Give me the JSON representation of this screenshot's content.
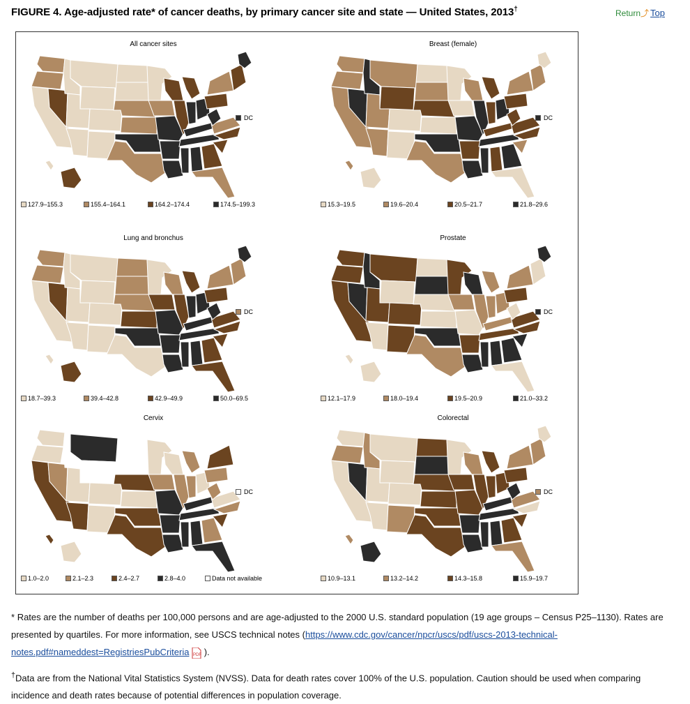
{
  "title": "FIGURE 4. Age-adjusted rate* of cancer deaths, by primary cancer site and state — United States, 2013",
  "title_mark": "†",
  "return_link": {
    "return_label": "Return",
    "top_label": "Top"
  },
  "colors": {
    "q1": "#e6d8c3",
    "q2": "#b08a63",
    "q3": "#6b4420",
    "q4": "#2b2b2b",
    "na": "#ffffff"
  },
  "dc_label": "DC",
  "panels": [
    {
      "title": "All cancer sites",
      "legend": [
        "127.9–155.3",
        "155.4–164.1",
        "164.2–174.4",
        "174.5–199.3"
      ],
      "dc_class": "q4",
      "state_classes": {
        "WA": "q2",
        "OR": "q2",
        "CA": "q1",
        "NV": "q3",
        "ID": "q1",
        "MT": "q1",
        "WY": "q1",
        "UT": "q1",
        "CO": "q1",
        "AZ": "q1",
        "NM": "q1",
        "ND": "q1",
        "SD": "q1",
        "NE": "q2",
        "KS": "q2",
        "OK": "q4",
        "TX": "q2",
        "MN": "q1",
        "IA": "q2",
        "MO": "q4",
        "AR": "q4",
        "LA": "q4",
        "WI": "q3",
        "IL": "q3",
        "MI": "q3",
        "IN": "q4",
        "OH": "q4",
        "KY": "q4",
        "TN": "q4",
        "MS": "q4",
        "AL": "q4",
        "GA": "q3",
        "FL": "q2",
        "SC": "q3",
        "NC": "q3",
        "VA": "q2",
        "WV": "q4",
        "PA": "q3",
        "NY": "q2",
        "NE_states": "q3",
        "ME": "q4",
        "AK": "q3",
        "HI": "q1"
      }
    },
    {
      "title": "Breast (female)",
      "legend": [
        "15.3–19.5",
        "19.6–20.4",
        "20.5–21.7",
        "21.8–29.6"
      ],
      "dc_class": "q4",
      "state_classes": {
        "WA": "q2",
        "OR": "q2",
        "CA": "q2",
        "NV": "q4",
        "ID": "q4",
        "MT": "q2",
        "WY": "q3",
        "UT": "q2",
        "CO": "q1",
        "AZ": "q2",
        "NM": "q1",
        "ND": "q1",
        "SD": "q2",
        "NE": "q3",
        "KS": "q1",
        "OK": "q4",
        "TX": "q2",
        "MN": "q1",
        "IA": "q1",
        "MO": "q4",
        "AR": "q3",
        "LA": "q4",
        "WI": "q2",
        "IL": "q4",
        "MI": "q3",
        "IN": "q3",
        "OH": "q4",
        "KY": "q3",
        "TN": "q4",
        "MS": "q4",
        "AL": "q3",
        "GA": "q4",
        "FL": "q1",
        "SC": "q2",
        "NC": "q3",
        "VA": "q3",
        "WV": "q3",
        "PA": "q3",
        "NY": "q2",
        "NE_states": "q2",
        "ME": "q1",
        "AK": "q1",
        "HI": "q2"
      }
    },
    {
      "title": "Lung and bronchus",
      "legend": [
        "18.7–39.3",
        "39.4–42.8",
        "42.9–49.9",
        "50.0–69.5"
      ],
      "dc_class": "q2",
      "state_classes": {
        "WA": "q2",
        "OR": "q2",
        "CA": "q1",
        "NV": "q3",
        "ID": "q1",
        "MT": "q1",
        "WY": "q1",
        "UT": "q1",
        "CO": "q1",
        "AZ": "q1",
        "NM": "q1",
        "ND": "q2",
        "SD": "q2",
        "NE": "q2",
        "KS": "q3",
        "OK": "q4",
        "TX": "q1",
        "MN": "q1",
        "IA": "q3",
        "MO": "q4",
        "AR": "q4",
        "LA": "q4",
        "WI": "q2",
        "IL": "q3",
        "MI": "q3",
        "IN": "q4",
        "OH": "q4",
        "KY": "q4",
        "TN": "q4",
        "MS": "q4",
        "AL": "q4",
        "GA": "q3",
        "FL": "q3",
        "SC": "q3",
        "NC": "q3",
        "VA": "q3",
        "WV": "q4",
        "PA": "q3",
        "NY": "q2",
        "NE_states": "q2",
        "ME": "q4",
        "AK": "q3",
        "HI": "q1"
      }
    },
    {
      "title": "Prostate",
      "legend": [
        "12.1–17.9",
        "18.0–19.4",
        "19.5–20.9",
        "21.0–33.2"
      ],
      "dc_class": "q4",
      "state_classes": {
        "WA": "q3",
        "OR": "q3",
        "CA": "q3",
        "NV": "q4",
        "ID": "q4",
        "MT": "q3",
        "WY": "q1",
        "UT": "q3",
        "CO": "q3",
        "AZ": "q1",
        "NM": "q3",
        "ND": "q1",
        "SD": "q4",
        "NE": "q1",
        "KS": "q1",
        "OK": "q4",
        "TX": "q2",
        "MN": "q3",
        "IA": "q2",
        "MO": "q1",
        "AR": "q3",
        "LA": "q4",
        "WI": "q4",
        "IL": "q2",
        "MI": "q2",
        "IN": "q2",
        "OH": "q2",
        "KY": "q2",
        "TN": "q3",
        "MS": "q4",
        "AL": "q4",
        "GA": "q4",
        "FL": "q1",
        "SC": "q4",
        "NC": "q3",
        "VA": "q3",
        "WV": "q1",
        "PA": "q3",
        "NY": "q2",
        "NE_states": "q1",
        "ME": "q4",
        "AK": "q1",
        "HI": "q1"
      }
    },
    {
      "title": "Cervix",
      "legend": [
        "1.0–2.0",
        "2.1–2.3",
        "2.4–2.7",
        "2.8–4.0",
        "Data not available"
      ],
      "dc_class": "na",
      "state_classes": {
        "WA": "q1",
        "OR": "q1",
        "CA": "q3",
        "NV": "q2",
        "ID": "na",
        "MT": "q4",
        "WY": "na",
        "UT": "q1",
        "CO": "q1",
        "AZ": "q3",
        "NM": "q1",
        "ND": "na",
        "SD": "na",
        "NE": "q3",
        "KS": "q1",
        "OK": "q3",
        "TX": "q3",
        "MN": "q1",
        "IA": "q2",
        "MO": "q4",
        "AR": "q4",
        "LA": "q4",
        "WI": "q1",
        "IL": "q2",
        "MI": "q2",
        "IN": "q2",
        "OH": "q1",
        "KY": "q4",
        "TN": "q4",
        "MS": "q4",
        "AL": "q4",
        "GA": "q2",
        "FL": "q4",
        "SC": "q3",
        "NC": "q2",
        "VA": "q1",
        "WV": "q2",
        "PA": "q2",
        "NY": "q3",
        "NE_states": "na",
        "ME": "na",
        "AK": "q1",
        "HI": "q3"
      }
    },
    {
      "title": "Colorectal",
      "legend": [
        "10.9–13.1",
        "13.2–14.2",
        "14.3–15.8",
        "15.9–19.7"
      ],
      "dc_class": "q2",
      "state_classes": {
        "WA": "q1",
        "OR": "q2",
        "CA": "q1",
        "NV": "q4",
        "ID": "q2",
        "MT": "q1",
        "WY": "q1",
        "UT": "q1",
        "CO": "q1",
        "AZ": "q1",
        "NM": "q2",
        "ND": "q3",
        "SD": "q4",
        "NE": "q3",
        "KS": "q3",
        "OK": "q3",
        "TX": "q3",
        "MN": "q1",
        "IA": "q3",
        "MO": "q3",
        "AR": "q4",
        "LA": "q4",
        "WI": "q2",
        "IL": "q3",
        "MI": "q3",
        "IN": "q3",
        "OH": "q3",
        "KY": "q4",
        "TN": "q4",
        "MS": "q4",
        "AL": "q4",
        "GA": "q3",
        "FL": "q2",
        "SC": "q3",
        "NC": "q1",
        "VA": "q2",
        "WV": "q4",
        "PA": "q3",
        "NY": "q2",
        "NE_states": "q2",
        "ME": "q1",
        "AK": "q4",
        "HI": "q2"
      }
    }
  ],
  "footnotes": {
    "star_mark": "*",
    "star_text": "Rates are the number of deaths per 100,000 persons and are age-adjusted to the 2000 U.S. standard population (19 age groups – Census P25–1130). Rates are presented by quartiles. For more information, see USCS technical notes (",
    "star_link": "https://www.cdc.gov/cancer/npcr/uscs/pdf/uscs-2013-technical-notes.pdf#nameddest=RegistriesPubCriteria",
    "star_end": ").",
    "dagger_mark": "†",
    "dagger_text": "Data are from the National Vital Statistics System (NVSS). Data for death rates cover 100% of the U.S. population. Caution should be used when comparing incidence and death rates because of potential differences in population coverage."
  }
}
